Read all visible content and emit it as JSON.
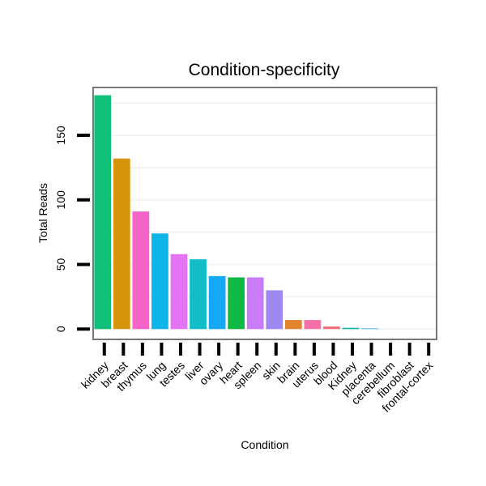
{
  "chart_data": {
    "type": "bar",
    "title": "Condition-specificity",
    "xlabel": "Condition",
    "ylabel": "Total Reads",
    "ylim": [
      -8,
      187
    ],
    "yticks": [
      0,
      50,
      100,
      150
    ],
    "grid": true,
    "legend": "none",
    "categories": [
      "kidney",
      "breast",
      "thymus",
      "lung",
      "testes",
      "liver",
      "ovary",
      "heart",
      "spleen",
      "skin",
      "brain",
      "uterus",
      "blood",
      "Kidney",
      "placenta",
      "cerebellum",
      "fibroblast",
      "frontal-cortex"
    ],
    "values": [
      181,
      132,
      91,
      74,
      58,
      54,
      41,
      40,
      40,
      30,
      7,
      7,
      2,
      1,
      0.5,
      0,
      0,
      0
    ],
    "colors": [
      "#10c07a",
      "#d4950a",
      "#f564c8",
      "#10b5e8",
      "#e474f2",
      "#10bdc8",
      "#15a8f5",
      "#10b845",
      "#c97cf7",
      "#a088f2",
      "#e0852e",
      "#f570a8",
      "#f07080",
      "#10b8a0",
      "#3aa4f5",
      "#e0e0e0",
      "#e0e0e0",
      "#e0e0e0"
    ]
  }
}
